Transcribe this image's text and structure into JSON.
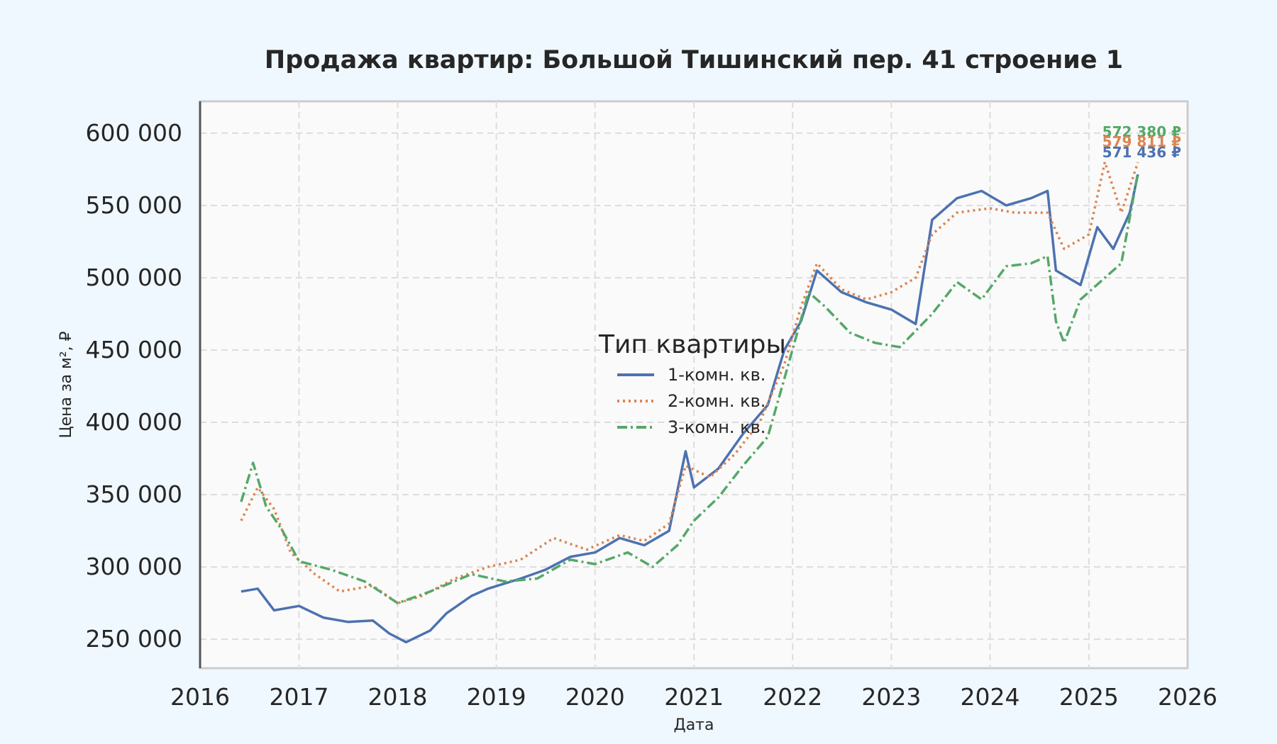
{
  "chart_data": {
    "type": "line",
    "title": "Продажа квартир: Большой Тишинский пер. 41 строение 1",
    "xlabel": "Дата",
    "ylabel": "Цена за м², ₽",
    "xlim": [
      "2016-01-01",
      "2026-01-01"
    ],
    "ylim": [
      230000,
      622000
    ],
    "x_ticks": [
      "2016",
      "2017",
      "2018",
      "2019",
      "2020",
      "2021",
      "2022",
      "2023",
      "2024",
      "2025",
      "2026"
    ],
    "y_ticks": [
      "250 000",
      "300 000",
      "350 000",
      "400 000",
      "450 000",
      "500 000",
      "550 000",
      "600 000"
    ],
    "y_tick_values": [
      250000,
      300000,
      350000,
      400000,
      450000,
      500000,
      550000,
      600000
    ],
    "grid": true,
    "legend": {
      "title": "Тип квартиры",
      "placement": "center"
    },
    "series": [
      {
        "name": "1-комн. кв.",
        "color": "#4c72b0",
        "style": "solid",
        "end_label": "571 436 ₽",
        "points": [
          [
            "2016-06-01",
            283000
          ],
          [
            "2016-08-01",
            285000
          ],
          [
            "2016-10-01",
            270000
          ],
          [
            "2017-01-01",
            273000
          ],
          [
            "2017-04-01",
            265000
          ],
          [
            "2017-07-01",
            262000
          ],
          [
            "2017-10-01",
            263000
          ],
          [
            "2017-12-01",
            254000
          ],
          [
            "2018-02-01",
            248000
          ],
          [
            "2018-05-01",
            256000
          ],
          [
            "2018-07-01",
            268000
          ],
          [
            "2018-10-01",
            280000
          ],
          [
            "2018-12-01",
            285000
          ],
          [
            "2019-04-01",
            292000
          ],
          [
            "2019-07-01",
            298000
          ],
          [
            "2019-10-01",
            307000
          ],
          [
            "2020-01-01",
            310000
          ],
          [
            "2020-04-01",
            320000
          ],
          [
            "2020-07-01",
            315000
          ],
          [
            "2020-10-01",
            325000
          ],
          [
            "2020-12-01",
            380000
          ],
          [
            "2021-01-01",
            355000
          ],
          [
            "2021-04-01",
            368000
          ],
          [
            "2021-07-01",
            392000
          ],
          [
            "2021-10-01",
            412000
          ],
          [
            "2021-12-01",
            450000
          ],
          [
            "2022-02-01",
            470000
          ],
          [
            "2022-04-01",
            505000
          ],
          [
            "2022-07-01",
            490000
          ],
          [
            "2022-10-01",
            483000
          ],
          [
            "2023-01-01",
            478000
          ],
          [
            "2023-04-01",
            468000
          ],
          [
            "2023-06-01",
            540000
          ],
          [
            "2023-09-01",
            555000
          ],
          [
            "2023-12-01",
            560000
          ],
          [
            "2024-03-01",
            550000
          ],
          [
            "2024-06-01",
            555000
          ],
          [
            "2024-08-01",
            560000
          ],
          [
            "2024-09-01",
            505000
          ],
          [
            "2024-12-01",
            495000
          ],
          [
            "2025-02-01",
            535000
          ],
          [
            "2025-04-01",
            520000
          ],
          [
            "2025-06-01",
            545000
          ],
          [
            "2025-07-01",
            571436
          ]
        ]
      },
      {
        "name": "2-комн. кв.",
        "color": "#dd8452",
        "style": "dotted",
        "end_label": "579 811 ₽",
        "points": [
          [
            "2016-06-01",
            332000
          ],
          [
            "2016-08-01",
            355000
          ],
          [
            "2016-10-01",
            340000
          ],
          [
            "2016-12-01",
            310000
          ],
          [
            "2017-03-01",
            295000
          ],
          [
            "2017-06-01",
            283000
          ],
          [
            "2017-10-01",
            287000
          ],
          [
            "2018-01-01",
            275000
          ],
          [
            "2018-04-01",
            280000
          ],
          [
            "2018-08-01",
            292000
          ],
          [
            "2018-12-01",
            300000
          ],
          [
            "2019-04-01",
            305000
          ],
          [
            "2019-08-01",
            320000
          ],
          [
            "2019-12-01",
            312000
          ],
          [
            "2020-04-01",
            322000
          ],
          [
            "2020-07-01",
            318000
          ],
          [
            "2020-10-01",
            330000
          ],
          [
            "2020-12-01",
            370000
          ],
          [
            "2021-03-01",
            362000
          ],
          [
            "2021-06-01",
            378000
          ],
          [
            "2021-09-01",
            400000
          ],
          [
            "2021-12-01",
            440000
          ],
          [
            "2022-02-01",
            480000
          ],
          [
            "2022-04-01",
            510000
          ],
          [
            "2022-07-01",
            492000
          ],
          [
            "2022-10-01",
            485000
          ],
          [
            "2023-01-01",
            490000
          ],
          [
            "2023-04-01",
            500000
          ],
          [
            "2023-06-01",
            530000
          ],
          [
            "2023-09-01",
            545000
          ],
          [
            "2024-01-01",
            548000
          ],
          [
            "2024-04-01",
            545000
          ],
          [
            "2024-08-01",
            545000
          ],
          [
            "2024-10-01",
            520000
          ],
          [
            "2025-01-01",
            530000
          ],
          [
            "2025-03-01",
            580000
          ],
          [
            "2025-05-01",
            545000
          ],
          [
            "2025-07-01",
            579811
          ]
        ]
      },
      {
        "name": "3-комн. кв.",
        "color": "#55a868",
        "style": "dashdot",
        "end_label": "572 380 ₽",
        "points": [
          [
            "2016-06-01",
            345000
          ],
          [
            "2016-07-15",
            372000
          ],
          [
            "2016-09-01",
            342000
          ],
          [
            "2016-11-01",
            325000
          ],
          [
            "2017-01-01",
            304000
          ],
          [
            "2017-05-01",
            298000
          ],
          [
            "2017-09-01",
            290000
          ],
          [
            "2018-01-01",
            275000
          ],
          [
            "2018-05-01",
            283000
          ],
          [
            "2018-10-01",
            295000
          ],
          [
            "2019-02-01",
            290000
          ],
          [
            "2019-06-01",
            292000
          ],
          [
            "2019-10-01",
            305000
          ],
          [
            "2020-01-01",
            302000
          ],
          [
            "2020-05-01",
            310000
          ],
          [
            "2020-08-01",
            300000
          ],
          [
            "2020-11-01",
            315000
          ],
          [
            "2021-01-01",
            332000
          ],
          [
            "2021-04-01",
            348000
          ],
          [
            "2021-07-01",
            370000
          ],
          [
            "2021-10-01",
            390000
          ],
          [
            "2021-12-01",
            430000
          ],
          [
            "2022-03-01",
            490000
          ],
          [
            "2022-05-01",
            480000
          ],
          [
            "2022-08-01",
            462000
          ],
          [
            "2022-11-01",
            455000
          ],
          [
            "2023-02-01",
            452000
          ],
          [
            "2023-06-01",
            475000
          ],
          [
            "2023-09-01",
            497000
          ],
          [
            "2023-12-01",
            485000
          ],
          [
            "2024-03-01",
            508000
          ],
          [
            "2024-06-01",
            510000
          ],
          [
            "2024-08-01",
            515000
          ],
          [
            "2024-09-01",
            470000
          ],
          [
            "2024-10-01",
            455000
          ],
          [
            "2024-12-01",
            485000
          ],
          [
            "2025-03-01",
            500000
          ],
          [
            "2025-05-01",
            510000
          ],
          [
            "2025-07-01",
            572380
          ]
        ]
      }
    ]
  }
}
